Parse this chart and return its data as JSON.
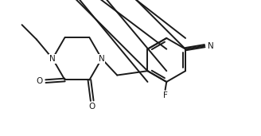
{
  "bg_color": "#ffffff",
  "bond_color": "#1a1a1a",
  "line_width": 1.4,
  "figsize": [
    3.28,
    1.71
  ],
  "dpi": 100,
  "xlim": [
    0.0,
    9.0
  ],
  "ylim": [
    -0.3,
    4.8
  ]
}
